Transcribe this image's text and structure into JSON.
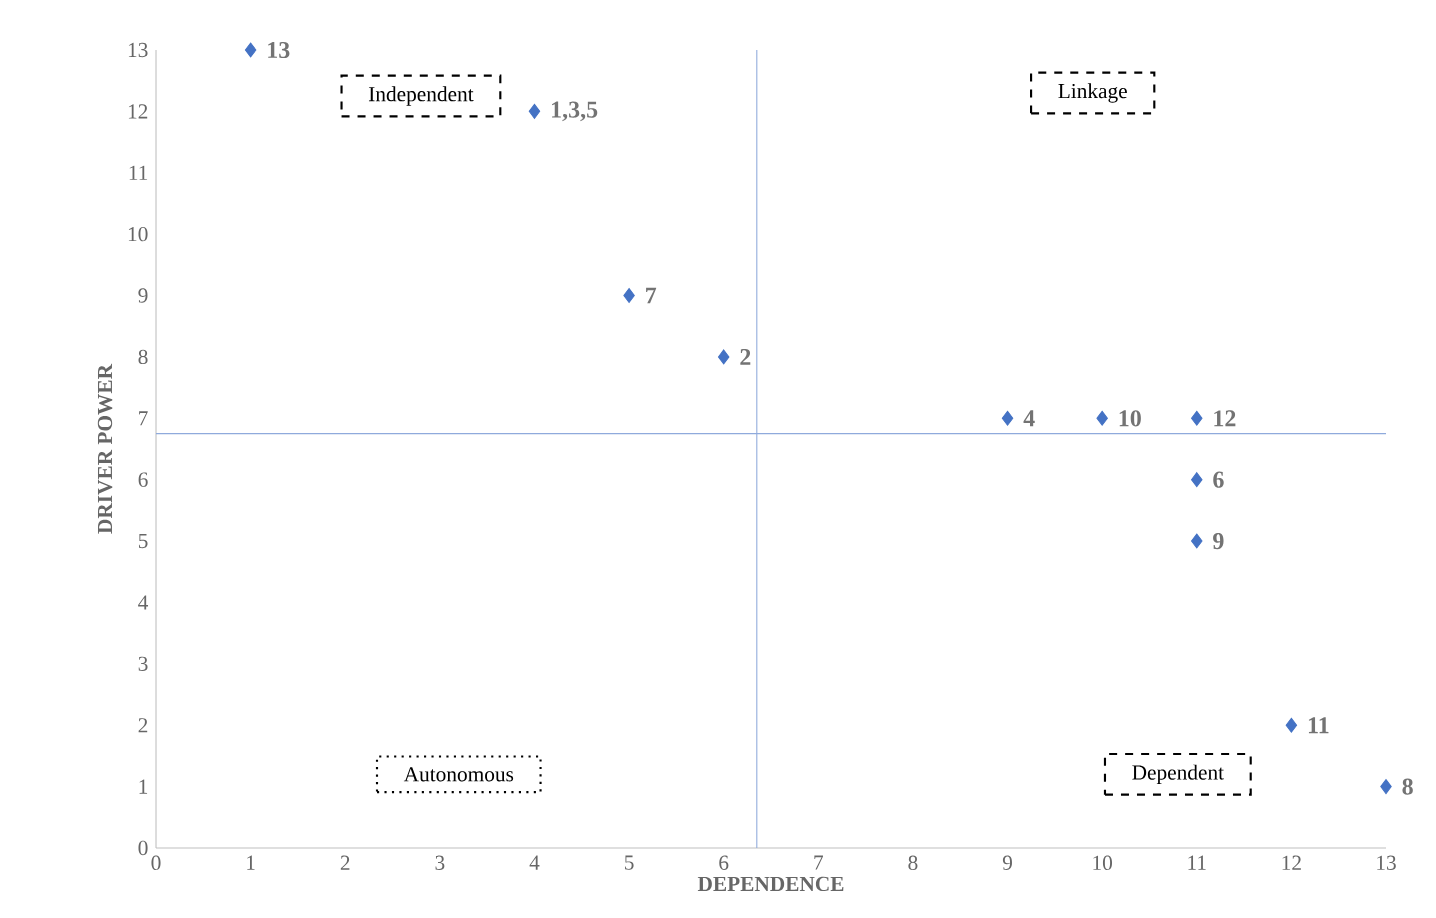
{
  "chart_data": {
    "type": "scatter",
    "xlabel": "DEPENDENCE",
    "ylabel": "DRIVER POWER",
    "x": [
      1,
      4,
      5,
      6,
      9,
      10,
      11,
      11,
      11,
      12,
      13
    ],
    "values": [
      13,
      12,
      9,
      8,
      7,
      7,
      7,
      6,
      5,
      2,
      1
    ],
    "color": "#4472c4",
    "marker": "diamond",
    "xlim": [
      0,
      13
    ],
    "ylim": [
      0,
      13
    ],
    "xticks": [
      0,
      1,
      2,
      3,
      4,
      5,
      6,
      7,
      8,
      9,
      10,
      11,
      12,
      13
    ],
    "yticks": [
      0,
      1,
      2,
      3,
      4,
      5,
      6,
      7,
      8,
      9,
      10,
      11,
      12,
      13
    ],
    "ref_lines": [
      {
        "axis": "x",
        "value": 6.35,
        "color": "#8faadc"
      },
      {
        "axis": "y",
        "value": 6.75,
        "color": "#8faadc"
      }
    ],
    "annotations": [
      "Independent",
      "Linkage",
      "Autonomous",
      "Dependent",
      {
        "text": "13",
        "x": 1,
        "y": 13
      },
      {
        "text": "1,3,5",
        "x": 4,
        "y": 12
      },
      {
        "text": "7",
        "x": 5,
        "y": 9
      },
      {
        "text": "2",
        "x": 6,
        "y": 8
      },
      {
        "text": "4",
        "x": 9,
        "y": 7
      },
      {
        "text": "10",
        "x": 10,
        "y": 7
      },
      {
        "text": "12",
        "x": 11,
        "y": 7
      },
      {
        "text": "6",
        "x": 11,
        "y": 6
      },
      {
        "text": "9",
        "x": 11,
        "y": 5
      },
      {
        "text": "11",
        "x": 12,
        "y": 2
      },
      {
        "text": "8",
        "x": 13,
        "y": 1
      }
    ],
    "grid": false
  }
}
